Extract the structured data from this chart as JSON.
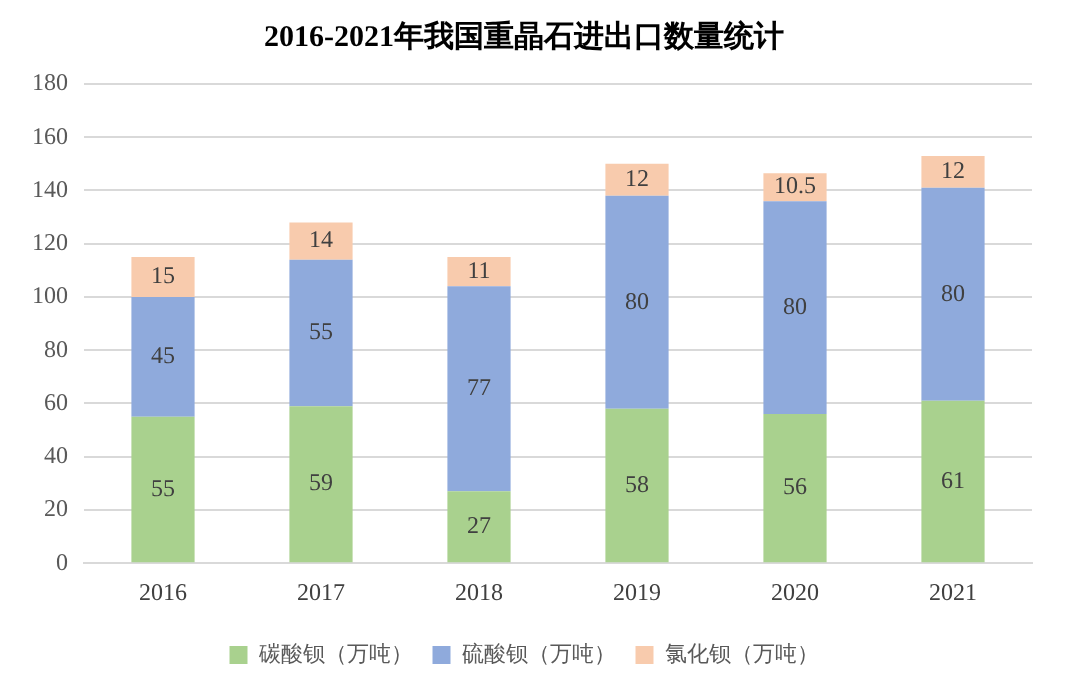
{
  "chart_data": {
    "type": "bar",
    "title": "2016-2021年我国重晶石进出口数量统计",
    "categories": [
      "2016",
      "2017",
      "2018",
      "2019",
      "2020",
      "2021"
    ],
    "series": [
      {
        "name": "碳酸钡（万吨）",
        "color": "#a9d18e",
        "values": [
          55,
          59,
          27,
          58,
          56,
          61
        ]
      },
      {
        "name": "硫酸钡（万吨）",
        "color": "#8faadc",
        "values": [
          45,
          55,
          77,
          80,
          80,
          80
        ]
      },
      {
        "name": "氯化钡（万吨）",
        "color": "#f8cbad",
        "values": [
          15,
          14,
          11,
          12,
          10.5,
          12
        ]
      }
    ],
    "stacked": true,
    "ylim": [
      0,
      180
    ],
    "yticks": [
      0,
      20,
      40,
      60,
      80,
      100,
      120,
      140,
      160,
      180
    ],
    "grid": "y",
    "legend": "bottom",
    "data_labels": true
  }
}
